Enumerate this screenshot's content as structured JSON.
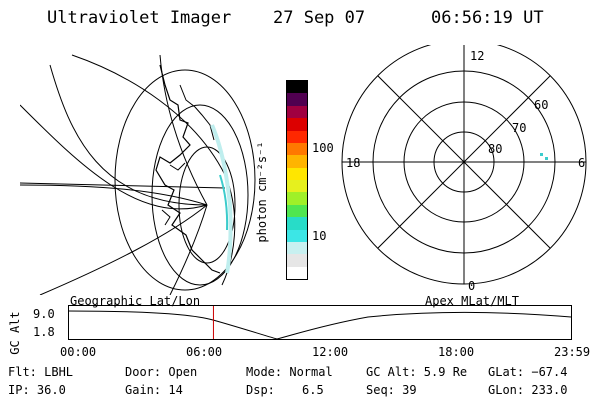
{
  "header": {
    "instrument": "Ultraviolet Imager",
    "date": "27 Sep 07",
    "time": "06:56:19 UT"
  },
  "colorbar": {
    "unit_label": "photon cm⁻²s⁻¹",
    "tick_high": "100",
    "tick_low": "10",
    "colors": [
      "#ffffff",
      "#e6e6e6",
      "#c8f0f0",
      "#3ce6e6",
      "#28dcc8",
      "#50e650",
      "#a0f028",
      "#e6f01e",
      "#ffe600",
      "#ffb400",
      "#ff7800",
      "#ff2800",
      "#dc0000",
      "#a00040",
      "#500050",
      "#000000"
    ]
  },
  "geo_map": {
    "coord_label": "Geographic Lat/Lon"
  },
  "polar_plot": {
    "coord_label": "Apex MLat/MLT",
    "mlt_labels": {
      "top": "12",
      "left": "18",
      "right": "6",
      "bottom": "0"
    },
    "lat_labels": [
      "60",
      "70",
      "80"
    ]
  },
  "altitude_plot": {
    "ylabel": "GC Alt",
    "y_ticks": [
      "9.0",
      "1.8"
    ],
    "x_ticks": [
      "00:00",
      "06:00",
      "12:00",
      "18:00",
      "23:59"
    ],
    "current_time_hours": 6.94
  },
  "footer": {
    "filter": "Flt: LBHL",
    "ip": "IP: 36.0",
    "door": "Door: Open",
    "gain": "Gain: 14",
    "mode": "Mode: Normal",
    "dsp_label": "Dsp:",
    "dsp_value": "6.5",
    "gc_alt": "GC Alt: 5.9 Re",
    "seq": "Seq: 39",
    "glat": "GLat: −67.4",
    "glon": "GLon: 233.0"
  }
}
